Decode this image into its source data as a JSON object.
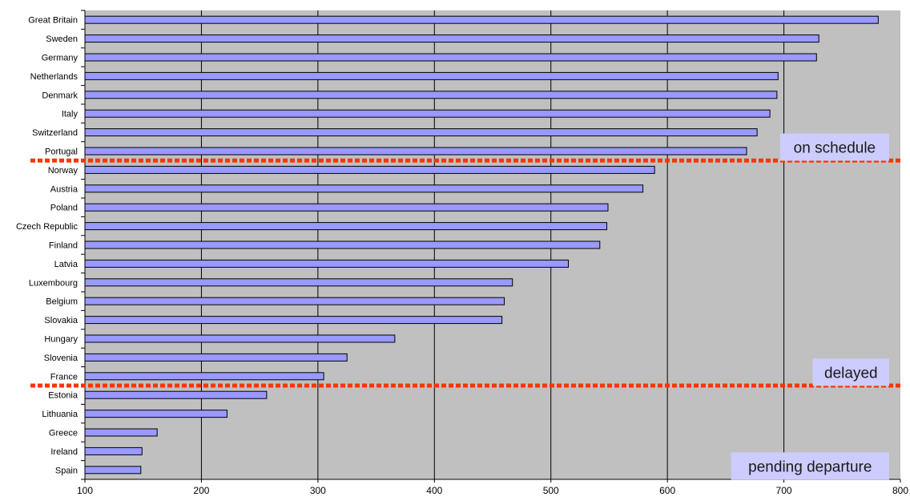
{
  "chart_data": {
    "type": "bar",
    "orientation": "horizontal",
    "categories": [
      "Great Britain",
      "Sweden",
      "Germany",
      "Netherlands",
      "Denmark",
      "Italy",
      "Switzerland",
      "Portugal",
      "Norway",
      "Austria",
      "Poland",
      "Czech Republic",
      "Finland",
      "Latvia",
      "Luxembourg",
      "Belgium",
      "Slovakia",
      "Hungary",
      "Slovenia",
      "France",
      "Estonia",
      "Lithuania",
      "Greece",
      "Ireland",
      "Spain"
    ],
    "values": [
      781,
      730,
      728,
      695,
      694,
      688,
      677,
      668,
      589,
      579,
      549,
      548,
      542,
      515,
      467,
      460,
      458,
      366,
      325,
      305,
      256,
      222,
      162,
      149,
      148
    ],
    "xlim": [
      100,
      800
    ],
    "xticks": [
      "100",
      "200",
      "300",
      "400",
      "500",
      "600",
      "700",
      "800"
    ],
    "title": "",
    "xlabel": "",
    "ylabel": "",
    "grid": "vertical",
    "legend": "none",
    "groups": [
      {
        "label": "on schedule",
        "first": "Great Britain",
        "last": "Portugal"
      },
      {
        "label": "delayed",
        "first": "Norway",
        "last": "France"
      },
      {
        "label": "pending departure",
        "first": "Estonia",
        "last": "Spain"
      }
    ],
    "colors": {
      "plot_background": "#c0c0c0",
      "bar_fill": "#9999ff",
      "bar_stroke": "#000000",
      "gridline": "#000000",
      "divider": "#ff3300",
      "annotation_box": "#ccccff"
    }
  }
}
